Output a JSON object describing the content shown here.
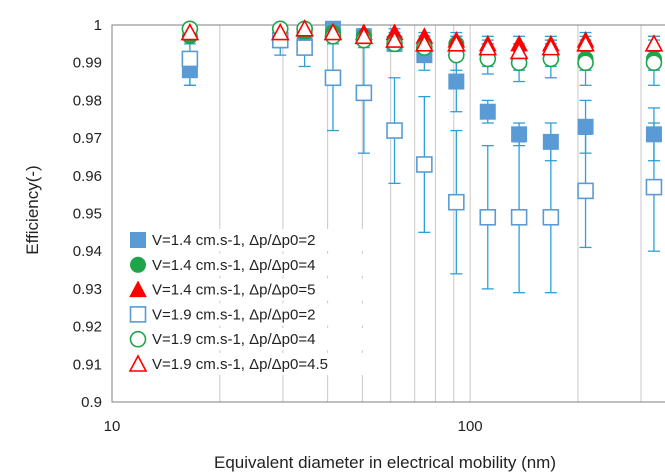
{
  "chart_data": {
    "type": "scatter",
    "title": "",
    "xlabel": "Equivalent diameter in electrical mobility (nm)",
    "ylabel": "Efficiency(-)",
    "xscale": "log",
    "xlim": [
      10,
      350
    ],
    "ylim": [
      0.9,
      1.0
    ],
    "x_ticks": [
      "10",
      "100"
    ],
    "y_ticks": [
      "0.9",
      "0.91",
      "0.92",
      "0.93",
      "0.94",
      "0.95",
      "0.96",
      "0.97",
      "0.98",
      "0.99",
      "1"
    ],
    "grid": "vertical",
    "legend_position": "bottom-left",
    "series": [
      {
        "name": "V=1.4 cm.s-1, Δp/Δp0=2",
        "marker": "square-filled",
        "color": "#5b9bd5",
        "x": [
          16.5,
          29.5,
          34.5,
          41.4,
          50.5,
          61.5,
          74.5,
          91.5,
          112,
          137,
          168,
          210,
          326
        ],
        "y": [
          0.988,
          0.996,
          0.998,
          0.999,
          0.997,
          0.995,
          0.992,
          0.985,
          0.977,
          0.971,
          0.969,
          0.973,
          0.971
        ],
        "err": [
          0.004,
          0.002,
          0.002,
          0.001,
          0.002,
          0.002,
          0.004,
          0.008,
          0.003,
          0.003,
          0.005,
          0.007,
          0.007
        ]
      },
      {
        "name": "V=1.4 cm.s-1, Δp/Δp0=4",
        "marker": "circle-filled",
        "color": "#1ea54a",
        "x": [
          16.5,
          29.5,
          34.5,
          41.4,
          50.5,
          61.5,
          74.5,
          91.5,
          112,
          137,
          168,
          210,
          326
        ],
        "y": [
          0.997,
          0.997,
          0.998,
          0.998,
          0.997,
          0.996,
          0.995,
          0.995,
          0.992,
          0.991,
          0.992,
          0.991,
          0.991
        ],
        "err": [
          0.002,
          0.002,
          0.002,
          0.002,
          0.002,
          0.002,
          0.002,
          0.002,
          0.003,
          0.003,
          0.003,
          0.003,
          0.003
        ]
      },
      {
        "name": "V=1.4 cm.s-1, Δp/Δp0=5",
        "marker": "triangle-filled",
        "color": "#ff0000",
        "x": [
          16.5,
          29.5,
          34.5,
          41.4,
          50.5,
          61.5,
          74.5,
          91.5,
          112,
          137,
          168,
          210,
          326
        ],
        "y": [
          0.998,
          0.998,
          0.999,
          0.998,
          0.998,
          0.998,
          0.997,
          0.996,
          0.995,
          0.995,
          0.995,
          0.996,
          0.995
        ],
        "err": [
          0.001,
          0.001,
          0.001,
          0.001,
          0.001,
          0.001,
          0.001,
          0.002,
          0.002,
          0.002,
          0.002,
          0.002,
          0.002
        ]
      },
      {
        "name": "V=1.9 cm.s-1, Δp/Δp0=2",
        "marker": "square-open",
        "color": "#5b9bd5",
        "x": [
          16.5,
          29.5,
          34.5,
          41.4,
          50.5,
          61.5,
          74.5,
          91.5,
          112,
          137,
          168,
          210,
          326
        ],
        "y": [
          0.991,
          0.996,
          0.994,
          0.986,
          0.982,
          0.972,
          0.963,
          0.953,
          0.949,
          0.949,
          0.949,
          0.956,
          0.957
        ],
        "err": [
          0.007,
          0.004,
          0.005,
          0.014,
          0.016,
          0.014,
          0.018,
          0.019,
          0.019,
          0.02,
          0.02,
          0.015,
          0.017
        ]
      },
      {
        "name": "V=1.9 cm.s-1, Δp/Δp0=4",
        "marker": "circle-open",
        "color": "#1ea54a",
        "x": [
          16.5,
          29.5,
          34.5,
          41.4,
          50.5,
          61.5,
          74.5,
          91.5,
          112,
          137,
          168,
          210,
          326
        ],
        "y": [
          0.999,
          0.999,
          0.999,
          0.997,
          0.996,
          0.995,
          0.994,
          0.992,
          0.991,
          0.99,
          0.991,
          0.99,
          0.99
        ],
        "err": [
          0.001,
          0.001,
          0.001,
          0.002,
          0.002,
          0.002,
          0.003,
          0.004,
          0.004,
          0.005,
          0.005,
          0.006,
          0.006
        ]
      },
      {
        "name": "V=1.9 cm.s-1, Δp/Δp0=4.5",
        "marker": "triangle-open",
        "color": "#ff0000",
        "x": [
          16.5,
          29.5,
          34.5,
          41.4,
          50.5,
          61.5,
          74.5,
          91.5,
          112,
          137,
          168,
          210,
          326
        ],
        "y": [
          0.998,
          0.998,
          0.999,
          0.998,
          0.997,
          0.996,
          0.995,
          0.995,
          0.994,
          0.993,
          0.994,
          0.995,
          0.995
        ],
        "err": [
          0.001,
          0.001,
          0.001,
          0.001,
          0.001,
          0.002,
          0.002,
          0.002,
          0.002,
          0.002,
          0.002,
          0.002,
          0.002
        ]
      }
    ]
  }
}
